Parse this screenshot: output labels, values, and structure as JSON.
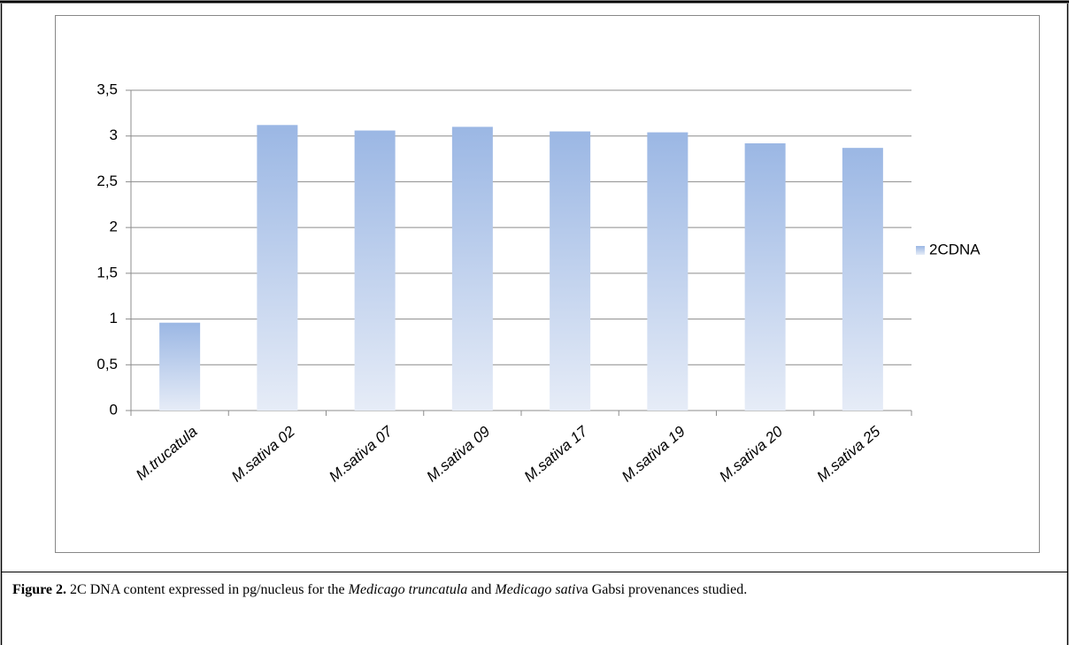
{
  "chart_data": {
    "type": "bar",
    "categories": [
      "M.trucatula",
      "M.sativa 02",
      "M.sativa 07",
      "M.sativa 09",
      "M.sativa 17",
      "M.sativa 19",
      "M.sativa 20",
      "M.sativa 25"
    ],
    "series": [
      {
        "name": "2CDNA",
        "color": "#9bb7e4",
        "values": [
          0.96,
          3.12,
          3.06,
          3.1,
          3.05,
          3.04,
          2.92,
          2.87
        ]
      }
    ],
    "ylim": [
      0,
      3.5
    ],
    "yticks": [
      0,
      {
        "value": 0.5,
        "label": "0,5"
      },
      1,
      {
        "value": 1.5,
        "label": "1,5"
      },
      2,
      {
        "value": 2.5,
        "label": "2,5"
      },
      3,
      {
        "value": 3.5,
        "label": "3,5"
      }
    ],
    "grid": true,
    "legend": "right",
    "caption": [
      {
        "text": "Figure 2.",
        "style": "bold"
      },
      {
        "text": " 2C DNA content expressed in pg/nucleus for the ",
        "style": "normal"
      },
      {
        "text": "Medicago truncatula",
        "style": "italic"
      },
      {
        "text": " and ",
        "style": "normal"
      },
      {
        "text": "Medicago sativ",
        "style": "italic"
      },
      {
        "text": "a Gabsi provenances studied.",
        "style": "normal"
      }
    ]
  }
}
